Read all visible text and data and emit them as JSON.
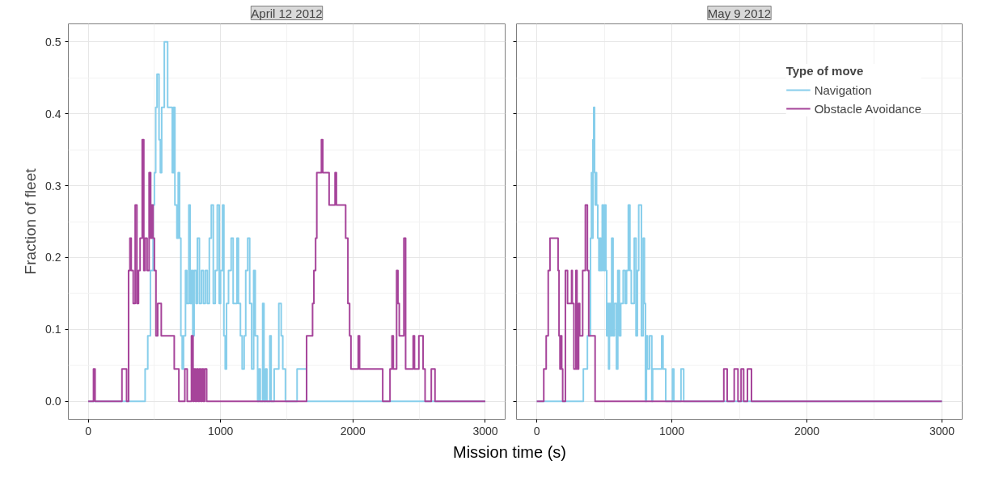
{
  "chart_data": [
    {
      "type": "step",
      "title": "April 12 2012",
      "xlabel": "Mission time (s)",
      "ylabel": "Fraction of fleet",
      "xlim": [
        -150,
        3150
      ],
      "ylim": [
        -0.025,
        0.525
      ],
      "xticks": [
        0,
        1000,
        2000,
        3000
      ],
      "yticks": [
        {
          "value": 0,
          "label": "0.0"
        },
        0.1,
        0.2,
        0.3,
        0.4,
        0.5
      ],
      "grid": true,
      "line_style": "solid",
      "series": [
        {
          "color": "#87ceeb",
          "x": [
            0,
            430,
            450,
            470,
            490,
            500,
            510,
            520,
            535,
            545,
            555,
            575,
            600,
            635,
            645,
            655,
            670,
            680,
            690,
            700,
            710,
            720,
            735,
            745,
            760,
            770,
            780,
            790,
            800,
            815,
            825,
            840,
            855,
            870,
            885,
            900,
            915,
            930,
            945,
            960,
            975,
            990,
            1000,
            1015,
            1025,
            1035,
            1045,
            1060,
            1080,
            1095,
            1124,
            1135,
            1150,
            1163,
            1178,
            1190,
            1205,
            1220,
            1235,
            1250,
            1262,
            1280,
            1290,
            1300,
            1318,
            1328,
            1340,
            1350,
            1372,
            1382,
            1405,
            1440,
            1458,
            1470,
            1490,
            1578,
            1650,
            3000
          ],
          "values": [
            0,
            0.045,
            0.091,
            0.182,
            0.273,
            0.318,
            0.409,
            0.455,
            0.364,
            0.318,
            0.409,
            0.5,
            0.409,
            0.318,
            0.409,
            0.273,
            0.227,
            0.318,
            0.227,
            0.091,
            0.045,
            0.091,
            0.182,
            0.136,
            0.273,
            0.136,
            0.182,
            0.091,
            0.182,
            0.136,
            0.227,
            0.136,
            0.182,
            0.136,
            0.182,
            0.136,
            0.227,
            0.273,
            0.136,
            0.182,
            0.273,
            0.136,
            0.182,
            0.273,
            0.091,
            0.045,
            0.136,
            0.182,
            0.227,
            0.136,
            0.227,
            0.136,
            0.091,
            0.045,
            0.091,
            0.182,
            0.227,
            0.136,
            0.045,
            0.182,
            0.091,
            0,
            0.045,
            0,
            0.136,
            0,
            0.045,
            0,
            0.091,
            0,
            0.045,
            0.136,
            0.091,
            0.045,
            0,
            0.045,
            0,
            0
          ]
        },
        {
          "color": "#a6449a",
          "x": [
            0,
            40,
            52,
            255,
            290,
            305,
            315,
            325,
            340,
            355,
            368,
            380,
            392,
            408,
            420,
            430,
            445,
            460,
            472,
            480,
            490,
            500,
            512,
            525,
            552,
            650,
            685,
            730,
            748,
            780,
            792,
            800,
            810,
            820,
            830,
            840,
            850,
            860,
            870,
            880,
            895,
            1650,
            1695,
            1705,
            1718,
            1727,
            1762,
            1772,
            1820,
            1865,
            1875,
            1945,
            1962,
            1975,
            1985,
            2040,
            2050,
            2225,
            2280,
            2295,
            2305,
            2330,
            2340,
            2350,
            2385,
            2398,
            2455,
            2465,
            2498,
            2530,
            2545,
            2592,
            2620,
            3000
          ],
          "values": [
            0,
            0.045,
            0,
            0.045,
            0,
            0.182,
            0.227,
            0.182,
            0.136,
            0.273,
            0.136,
            0.182,
            0.227,
            0.364,
            0.182,
            0.227,
            0.182,
            0.318,
            0.227,
            0.273,
            0.227,
            0.182,
            0.091,
            0.136,
            0.091,
            0.045,
            0,
            0.045,
            0,
            0.091,
            0,
            0.045,
            0,
            0.045,
            0,
            0.045,
            0,
            0.045,
            0,
            0.045,
            0,
            0.091,
            0.136,
            0.182,
            0.227,
            0.318,
            0.364,
            0.318,
            0.273,
            0.318,
            0.273,
            0.227,
            0.136,
            0.091,
            0.045,
            0.091,
            0.045,
            0,
            0.045,
            0.091,
            0.045,
            0.182,
            0.136,
            0.091,
            0.227,
            0.045,
            0.091,
            0.045,
            0.091,
            0.045,
            0,
            0.045,
            0,
            0
          ]
        }
      ]
    },
    {
      "type": "step",
      "title": "May 9 2012",
      "xlim": [
        -150,
        3150
      ],
      "ylim": [
        -0.025,
        0.525
      ],
      "xticks": [
        0,
        1000,
        2000,
        3000
      ],
      "yticks": [
        0.0,
        0.1,
        0.2,
        0.3,
        0.4,
        0.5
      ],
      "grid": true,
      "line_style": "solid",
      "tick_labels": "x",
      "legend": "top right",
      "legend_title": "Type of move",
      "series": [
        {
          "name": "Navigation",
          "color": "#87ceeb",
          "x": [
            0,
            345,
            375,
            398,
            405,
            412,
            416,
            422,
            428,
            433,
            437,
            443,
            452,
            460,
            468,
            475,
            485,
            495,
            503,
            512,
            518,
            525,
            532,
            538,
            545,
            555,
            565,
            575,
            590,
            600,
            612,
            622,
            640,
            655,
            665,
            678,
            690,
            700,
            722,
            735,
            745,
            755,
            775,
            788,
            797,
            805,
            812,
            820,
            835,
            852,
            858,
            925,
            935,
            955,
            1005,
            1015,
            1068,
            1088,
            3000
          ],
          "values": [
            0,
            0.045,
            0.091,
            0.227,
            0.318,
            0.227,
            0.364,
            0.409,
            0.318,
            0.273,
            0.318,
            0.273,
            0.227,
            0.182,
            0.227,
            0.182,
            0.273,
            0.182,
            0.273,
            0.182,
            0.091,
            0.136,
            0.045,
            0.136,
            0.091,
            0.227,
            0.091,
            0.136,
            0.045,
            0.182,
            0.091,
            0.136,
            0.182,
            0.136,
            0.182,
            0.273,
            0.182,
            0.136,
            0.227,
            0.091,
            0.182,
            0.273,
            0.091,
            0.227,
            0.136,
            0,
            0.091,
            0.045,
            0.091,
            0,
            0.045,
            0.091,
            0.045,
            0,
            0.045,
            0,
            0.045,
            0,
            0
          ]
        },
        {
          "name": "Obstacle Avoidance",
          "color": "#a6449a",
          "x": [
            0,
            52,
            70,
            85,
            98,
            158,
            165,
            172,
            178,
            185,
            192,
            212,
            228,
            258,
            263,
            275,
            290,
            298,
            310,
            318,
            340,
            360,
            375,
            385,
            432,
            1385,
            1410,
            1462,
            1490,
            1513,
            1532,
            1560,
            1590,
            3000
          ],
          "values": [
            0,
            0.045,
            0.091,
            0.182,
            0.227,
            0.182,
            0.091,
            0.045,
            0.091,
            0.045,
            0,
            0.182,
            0.136,
            0.182,
            0.136,
            0.045,
            0.182,
            0.045,
            0.136,
            0.091,
            0.182,
            0.273,
            0.182,
            0.091,
            0,
            0.045,
            0,
            0.045,
            0,
            0.045,
            0,
            0.045,
            0,
            0
          ]
        }
      ]
    }
  ]
}
